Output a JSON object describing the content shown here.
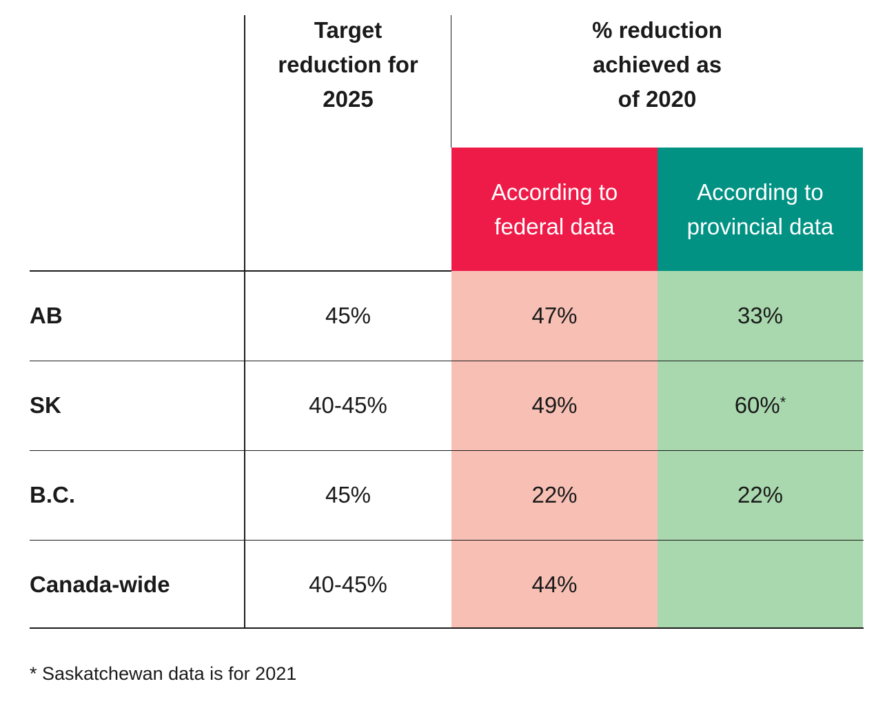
{
  "chart_data": {
    "type": "table",
    "header": {
      "target_col": "Target\nreduction for\n2025",
      "achieved_group": "% reduction\nachieved as\nof 2020",
      "federal_col": "According to\nfederal data",
      "provincial_col": "According to\nprovincial data"
    },
    "rows": [
      {
        "label": "AB",
        "target": "45%",
        "federal": "47%",
        "provincial": "33%",
        "provincial_note": ""
      },
      {
        "label": "SK",
        "target": "40-45%",
        "federal": "49%",
        "provincial": "60%",
        "provincial_note": "*"
      },
      {
        "label": "B.C.",
        "target": "45%",
        "federal": "22%",
        "provincial": "22%",
        "provincial_note": ""
      },
      {
        "label": "Canada-wide",
        "target": "40-45%",
        "federal": "44%",
        "provincial": "",
        "provincial_note": ""
      }
    ],
    "footnote": "* Saskatchewan data is for 2021",
    "colors": {
      "federal_header": "#ee1a48",
      "provincial_header": "#019283",
      "federal_cell": "#f8c0b5",
      "provincial_cell": "#a9d8ae"
    }
  }
}
